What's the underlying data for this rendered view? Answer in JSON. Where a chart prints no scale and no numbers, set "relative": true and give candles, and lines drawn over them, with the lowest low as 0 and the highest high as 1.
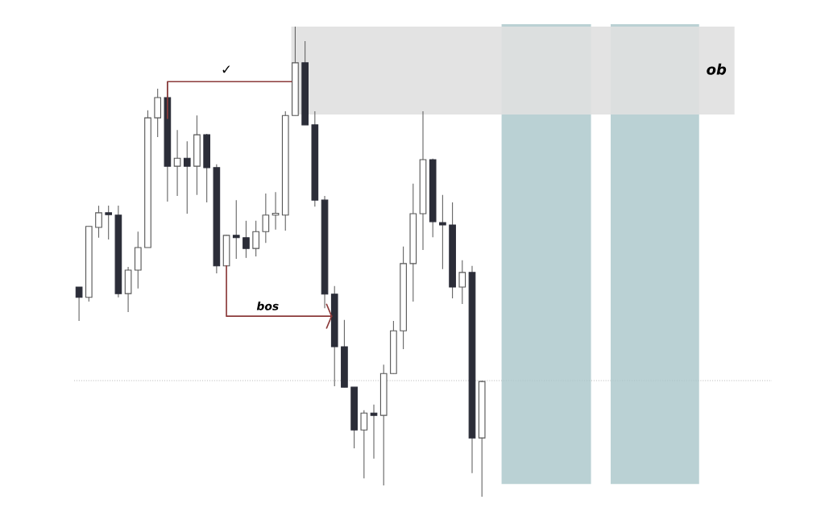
{
  "chart_data": {
    "type": "candlestick",
    "relative": true,
    "categories": [
      null,
      null,
      null,
      null,
      null,
      null,
      null,
      null,
      null,
      null,
      null,
      null,
      null,
      null,
      null,
      null,
      null,
      null,
      null,
      null,
      null,
      null,
      null,
      null,
      null,
      null,
      null,
      null,
      null,
      null,
      null,
      null,
      null,
      null,
      null,
      null,
      null,
      null,
      null,
      null,
      null,
      null,
      null,
      null,
      null,
      null,
      null,
      null,
      null,
      null,
      null,
      null,
      null,
      null,
      null,
      null,
      null,
      null,
      null,
      null,
      null,
      null,
      null,
      null,
      null,
      null,
      null,
      null,
      null,
      null,
      null
    ],
    "ohlc": [
      [
        0.446,
        0.446,
        0.374,
        0.424
      ],
      [
        0.424,
        0.575,
        0.415,
        0.575
      ],
      [
        0.573,
        0.619,
        0.551,
        0.604
      ],
      [
        0.604,
        0.619,
        0.547,
        0.6
      ],
      [
        0.599,
        0.619,
        0.424,
        0.432
      ],
      [
        0.432,
        0.489,
        0.393,
        0.482
      ],
      [
        0.482,
        0.564,
        0.443,
        0.53
      ],
      [
        0.53,
        0.822,
        0.53,
        0.806
      ],
      [
        0.806,
        0.868,
        0.765,
        0.849
      ],
      [
        0.849,
        0.883,
        0.628,
        0.703
      ],
      [
        0.703,
        0.78,
        0.64,
        0.72
      ],
      [
        0.72,
        0.756,
        0.602,
        0.703
      ],
      [
        0.703,
        0.811,
        0.642,
        0.77
      ],
      [
        0.77,
        0.772,
        0.626,
        0.7
      ],
      [
        0.7,
        0.707,
        0.475,
        0.491
      ],
      [
        0.491,
        0.557,
        0.491,
        0.556
      ],
      [
        0.556,
        0.631,
        0.506,
        0.551
      ],
      [
        0.551,
        0.587,
        0.508,
        0.528
      ],
      [
        0.528,
        0.587,
        0.511,
        0.564
      ],
      [
        0.564,
        0.645,
        0.54,
        0.599
      ],
      [
        0.599,
        0.648,
        0.568,
        0.6
      ],
      [
        0.599,
        0.82,
        0.566,
        0.811
      ],
      [
        0.811,
        1.0,
        0.811,
        0.923
      ],
      [
        0.923,
        0.969,
        0.791,
        0.791
      ],
      [
        0.791,
        0.82,
        0.617,
        0.631
      ],
      [
        0.631,
        0.64,
        0.401,
        0.431
      ],
      [
        0.431,
        0.448,
        0.235,
        0.319
      ],
      [
        0.319,
        0.376,
        0.233,
        0.233
      ],
      [
        0.233,
        0.233,
        0.103,
        0.142
      ],
      [
        0.142,
        0.184,
        0.039,
        0.178
      ],
      [
        0.178,
        0.196,
        0.081,
        0.173
      ],
      [
        0.173,
        0.281,
        0.024,
        0.262
      ],
      [
        0.262,
        0.374,
        0.261,
        0.353
      ],
      [
        0.353,
        0.532,
        0.314,
        0.496
      ],
      [
        0.496,
        0.666,
        0.415,
        0.602
      ],
      [
        0.602,
        0.82,
        0.525,
        0.717
      ],
      [
        0.717,
        0.719,
        0.552,
        0.585
      ],
      [
        0.583,
        0.642,
        0.484,
        0.578
      ],
      [
        0.578,
        0.626,
        0.422,
        0.446
      ],
      [
        0.446,
        0.503,
        0.41,
        0.477
      ],
      [
        0.477,
        0.491,
        0.05,
        0.125
      ],
      [
        0.125,
        0.247,
        0.0,
        0.245
      ],
      null,
      null,
      null,
      null,
      null,
      null,
      null,
      null,
      null,
      null,
      null,
      null,
      null,
      null,
      null,
      null,
      null,
      null,
      null,
      null,
      null,
      null,
      null,
      null,
      null,
      null,
      null,
      null,
      null
    ],
    "colors": [
      "#2b2d38",
      "#ffffff",
      "#ffffff",
      "#2b2d38",
      "#2b2d38",
      "#ffffff",
      "#ffffff",
      "#ffffff",
      "#ffffff",
      "#2b2d38",
      "#ffffff",
      "#2b2d38",
      "#ffffff",
      "#2b2d38",
      "#2b2d38",
      "#ffffff",
      "#2b2d38",
      "#2b2d38",
      "#ffffff",
      "#ffffff",
      "#ffffff",
      "#ffffff",
      "#ffffff",
      "#2b2d38",
      "#2b2d38",
      "#2b2d38",
      "#2b2d38",
      "#2b2d38",
      "#2b2d38",
      "#ffffff",
      "#2b2d38",
      "#ffffff",
      "#ffffff",
      "#ffffff",
      "#ffffff",
      "#ffffff",
      "#2b2d38",
      "#2b2d38",
      "#2b2d38",
      "#ffffff",
      "#2b2d38",
      "#ffffff",
      null,
      null,
      null,
      null,
      null,
      null,
      null,
      null,
      null,
      null,
      null,
      null,
      null,
      null,
      null,
      null,
      null,
      null,
      null,
      null,
      null,
      null,
      null,
      null,
      null,
      null,
      null,
      null,
      null
    ],
    "ref_lines": [
      {
        "axis": "y",
        "value": 0.247,
        "color": "#bbbbbb",
        "line_style": "dotted"
      }
    ],
    "bands": [
      {
        "axis": "y",
        "from": 0.813,
        "to": 1.0,
        "label": "ob",
        "color": "#e0e0e0"
      }
    ],
    "annotations": [
      "✓",
      "bos"
    ]
  }
}
